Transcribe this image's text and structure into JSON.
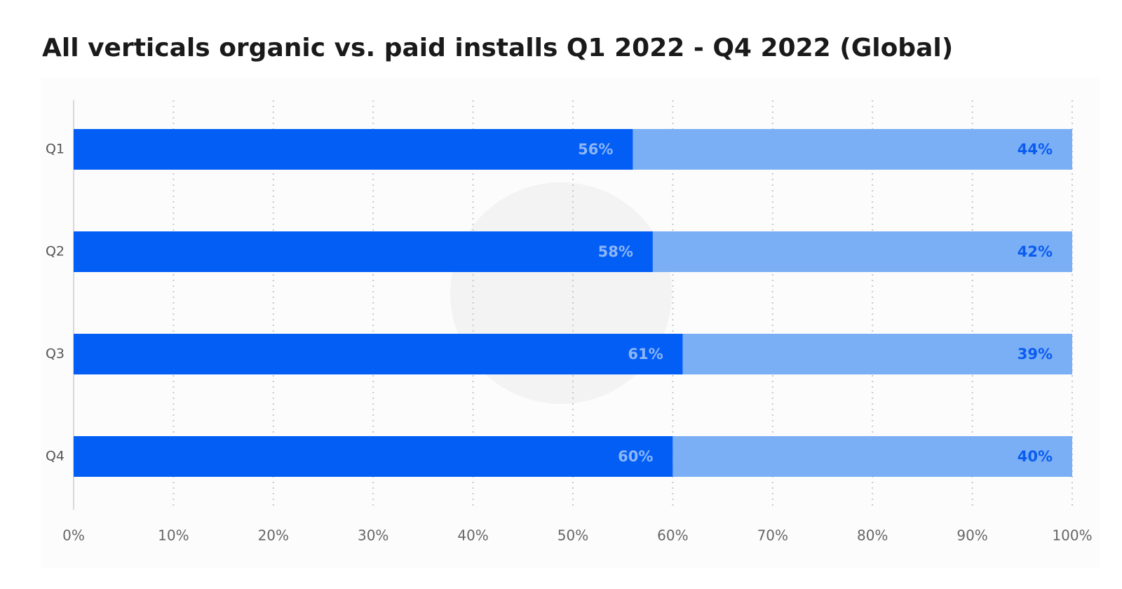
{
  "chart_data": {
    "type": "stacked-bar-horizontal",
    "title": "All verticals organic vs. paid installs Q1 2022 - Q4 2022 (Global)",
    "categories": [
      "Q1",
      "Q2",
      "Q3",
      "Q4"
    ],
    "series": [
      {
        "color": "#035ef6",
        "label_color": "#8db6f7",
        "values": [
          56,
          58,
          61,
          60
        ],
        "value_labels": [
          "56%",
          "58%",
          "61%",
          "60%"
        ]
      },
      {
        "color": "#7aaff5",
        "label_color": "#0a5cf0",
        "values": [
          44,
          42,
          39,
          40
        ],
        "value_labels": [
          "44%",
          "42%",
          "39%",
          "40%"
        ]
      }
    ],
    "xlim": [
      0,
      100
    ],
    "xticks": [
      {
        "value": 0,
        "label": "0%"
      },
      {
        "value": 10,
        "label": "10%"
      },
      {
        "value": 20,
        "label": "20%"
      },
      {
        "value": 30,
        "label": "30%"
      },
      {
        "value": 40,
        "label": "40%"
      },
      {
        "value": 50,
        "label": "50%"
      },
      {
        "value": 60,
        "label": "60%"
      },
      {
        "value": 70,
        "label": "70%"
      },
      {
        "value": 80,
        "label": "80%"
      },
      {
        "value": 90,
        "label": "90%"
      },
      {
        "value": 100,
        "label": "100%"
      }
    ],
    "grid": true
  }
}
